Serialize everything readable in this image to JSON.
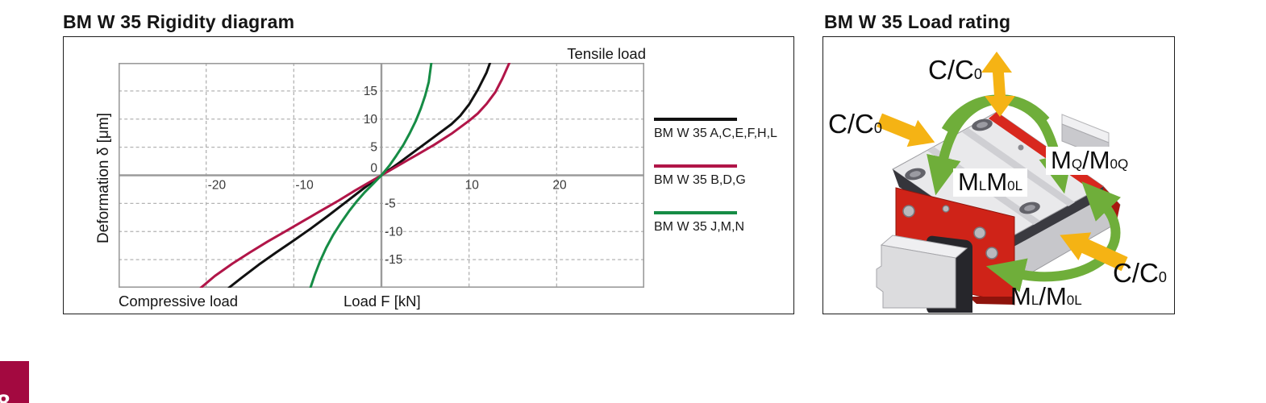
{
  "page": {
    "accent_square": {
      "color": "#a30940",
      "partial_glyph": "8"
    }
  },
  "rigidity_panel": {
    "title": "BM W 35 Rigidity diagram",
    "tensile_label": "Tensile load",
    "compressive_label": "Compressive load",
    "x_axis_label": "Load F [kN]",
    "y_axis_label": "Deformation δ [μm]",
    "legend": [
      {
        "label": "BM W 35 A,C,E,F,H,L",
        "color": "#111111"
      },
      {
        "label": "BM W 35 B,D,G",
        "color": "#b11548"
      },
      {
        "label": "BM W 35 J,M,N",
        "color": "#168c45"
      }
    ]
  },
  "chart_data": {
    "type": "line",
    "title": "BM W 35 Rigidity diagram",
    "xlabel": "Load F [kN]",
    "ylabel": "Deformation δ [μm]",
    "xlim": [
      -30,
      30
    ],
    "ylim": [
      -20,
      20
    ],
    "x_ticks": [
      -20,
      -10,
      10,
      20
    ],
    "y_ticks": [
      15,
      10,
      5,
      0,
      -5,
      -10,
      -15
    ],
    "grid": "dashed",
    "legend_position": "right",
    "annotations": [
      "Tensile load",
      "Compressive load"
    ],
    "series": [
      {
        "name": "BM W 35 A,C,E,F,H,L",
        "color": "#111111",
        "points": [
          [
            -17.4,
            -20
          ],
          [
            -16,
            -18.3
          ],
          [
            -14,
            -15.9
          ],
          [
            -12,
            -13.7
          ],
          [
            -10,
            -11.6
          ],
          [
            -8,
            -9.4
          ],
          [
            -6,
            -7.1
          ],
          [
            -4,
            -4.7
          ],
          [
            -2,
            -2.3
          ],
          [
            0,
            0
          ],
          [
            2,
            2.2
          ],
          [
            4,
            4.5
          ],
          [
            6,
            6.8
          ],
          [
            8,
            9.1
          ],
          [
            9,
            10.6
          ],
          [
            10,
            12.6
          ],
          [
            11,
            15.2
          ],
          [
            12,
            18.3
          ],
          [
            12.4,
            20
          ]
        ]
      },
      {
        "name": "BM W 35 B,D,G",
        "color": "#b11548",
        "points": [
          [
            -20.6,
            -20
          ],
          [
            -19,
            -17.9
          ],
          [
            -17,
            -15.7
          ],
          [
            -15,
            -13.7
          ],
          [
            -13,
            -11.8
          ],
          [
            -11,
            -10
          ],
          [
            -9,
            -8.2
          ],
          [
            -7,
            -6.4
          ],
          [
            -5,
            -4.6
          ],
          [
            -3,
            -2.7
          ],
          [
            -1,
            -0.9
          ],
          [
            0,
            0
          ],
          [
            2,
            1.8
          ],
          [
            4,
            3.6
          ],
          [
            6,
            5.4
          ],
          [
            8,
            7.4
          ],
          [
            10,
            9.7
          ],
          [
            11,
            11
          ],
          [
            12,
            12.7
          ],
          [
            13,
            14.8
          ],
          [
            13.8,
            17.2
          ],
          [
            14.6,
            20
          ]
        ]
      },
      {
        "name": "BM W 35 J,M,N",
        "color": "#168c45",
        "points": [
          [
            -8.1,
            -20
          ],
          [
            -7.6,
            -17.7
          ],
          [
            -7,
            -15.3
          ],
          [
            -6.3,
            -12.9
          ],
          [
            -5.5,
            -10.6
          ],
          [
            -4.6,
            -8.4
          ],
          [
            -3.7,
            -6.4
          ],
          [
            -2.8,
            -4.6
          ],
          [
            -1.9,
            -3
          ],
          [
            -1,
            -1.6
          ],
          [
            0,
            0
          ],
          [
            0.9,
            1.7
          ],
          [
            1.7,
            3.5
          ],
          [
            2.5,
            5.4
          ],
          [
            3.2,
            7.4
          ],
          [
            3.9,
            9.6
          ],
          [
            4.5,
            11.9
          ],
          [
            5,
            14.2
          ],
          [
            5.4,
            16.6
          ],
          [
            5.7,
            20
          ]
        ]
      }
    ]
  },
  "load_panel": {
    "title": "BM W 35 Load rating",
    "labels": {
      "cc0": {
        "main": "C/C",
        "sub": "0"
      },
      "mq": {
        "m1": "M",
        "s1": "Q",
        "slash": "/",
        "m2": "M",
        "s2": "0Q"
      },
      "ml_box": {
        "m1": "M",
        "s1": "L",
        "m2": "M",
        "s2": "0L"
      },
      "ml_slash": {
        "m1": "M",
        "s1": "L",
        "slash": "/",
        "m2": "M",
        "s2": "0L"
      }
    }
  }
}
